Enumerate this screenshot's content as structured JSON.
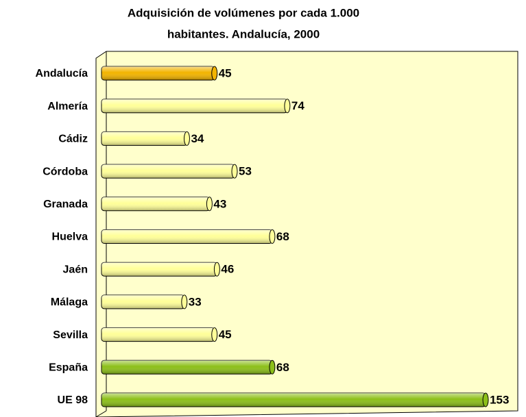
{
  "chart_data": {
    "type": "bar",
    "orientation": "horizontal",
    "title": [
      "Adquisición de volúmenes por cada 1.000",
      "habitantes. Andalucía, 2000"
    ],
    "categories": [
      "Andalucía",
      "Almería",
      "Cádiz",
      "Córdoba",
      "Granada",
      "Huelva",
      "Jaén",
      "Málaga",
      "Sevilla",
      "España",
      "UE 98"
    ],
    "values": [
      45,
      74,
      34,
      53,
      43,
      68,
      46,
      33,
      45,
      68,
      153
    ],
    "colors": [
      "#f2b400",
      "#ffff99",
      "#ffff99",
      "#ffff99",
      "#ffff99",
      "#ffff99",
      "#ffff99",
      "#ffff99",
      "#ffff99",
      "#8cbf1a",
      "#8cbf1a"
    ],
    "xlim": [
      0,
      165
    ]
  }
}
